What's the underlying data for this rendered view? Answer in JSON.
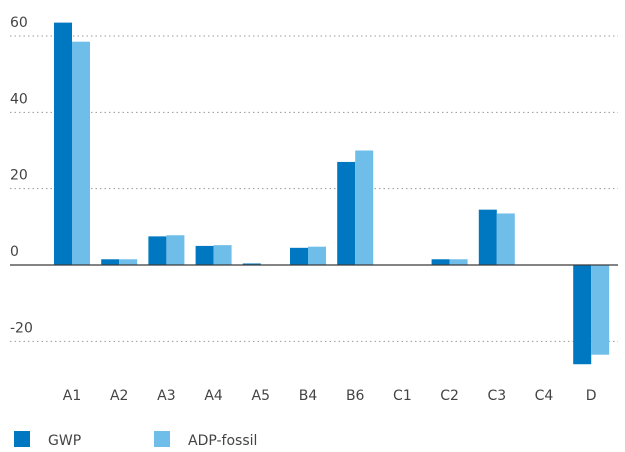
{
  "chart_data": {
    "type": "bar",
    "categories": [
      "A1",
      "A2",
      "A3",
      "A4",
      "A5",
      "B4",
      "B6",
      "C1",
      "C2",
      "C3",
      "C4",
      "D"
    ],
    "series": [
      {
        "name": "GWP",
        "color": "#0078c1",
        "values": [
          63.5,
          1.5,
          7.5,
          5.0,
          0.4,
          4.5,
          27.0,
          0.0,
          1.5,
          14.5,
          0.0,
          -26.0
        ]
      },
      {
        "name": "ADP-fossil",
        "color": "#6fbde9",
        "values": [
          58.5,
          1.5,
          7.8,
          5.2,
          0.1,
          4.8,
          30.0,
          0.0,
          1.5,
          13.5,
          0.0,
          -23.5
        ]
      }
    ],
    "yticks": [
      60,
      40,
      20,
      0,
      -20
    ],
    "ylim": [
      -30,
      64
    ],
    "grid": true,
    "legend_position": "bottom-left",
    "title": "",
    "xlabel": "",
    "ylabel": ""
  }
}
